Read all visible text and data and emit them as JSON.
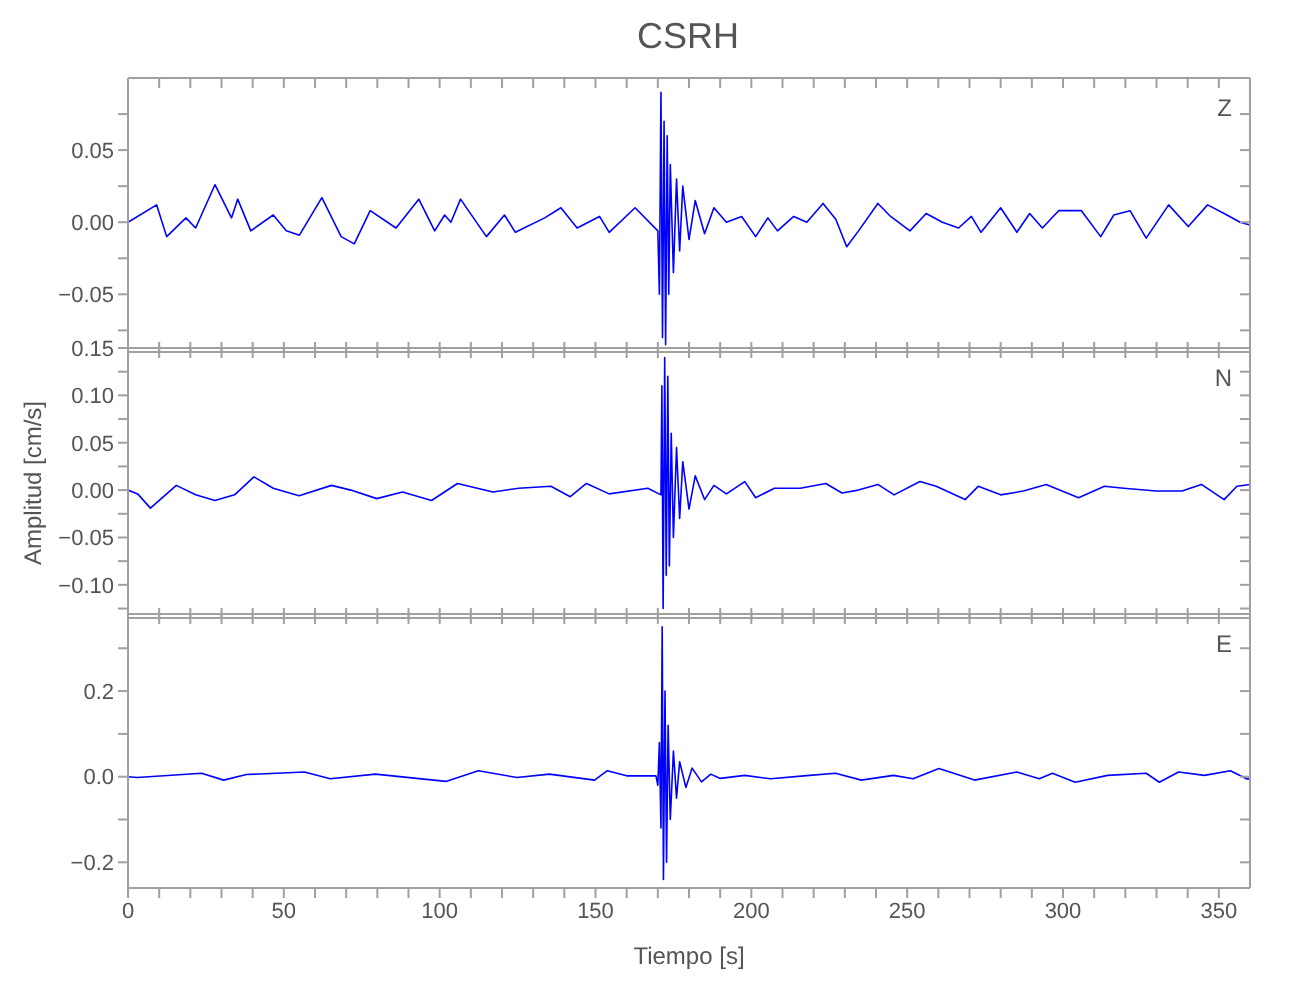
{
  "chart_data": [
    {
      "type": "line",
      "title": "CSRH",
      "annotations": [
        "Z"
      ],
      "color": "#0000ff",
      "tick_labels": "y",
      "xlim": [
        0,
        360
      ],
      "xticks": [
        0,
        {
          "value": 10,
          "label": null
        },
        {
          "value": 20,
          "label": null
        },
        {
          "value": 30,
          "label": null
        },
        {
          "value": 40,
          "label": null
        },
        50,
        {
          "value": 60,
          "label": null
        },
        {
          "value": 70,
          "label": null
        },
        {
          "value": 80,
          "label": null
        },
        {
          "value": 90,
          "label": null
        },
        100,
        {
          "value": 110,
          "label": null
        },
        {
          "value": 120,
          "label": null
        },
        {
          "value": 130,
          "label": null
        },
        {
          "value": 140,
          "label": null
        },
        150,
        {
          "value": 160,
          "label": null
        },
        {
          "value": 170,
          "label": null
        },
        {
          "value": 180,
          "label": null
        },
        {
          "value": 190,
          "label": null
        },
        200,
        {
          "value": 210,
          "label": null
        },
        {
          "value": 220,
          "label": null
        },
        {
          "value": 230,
          "label": null
        },
        {
          "value": 240,
          "label": null
        },
        250,
        {
          "value": 260,
          "label": null
        },
        {
          "value": 270,
          "label": null
        },
        {
          "value": 280,
          "label": null
        },
        {
          "value": 290,
          "label": null
        },
        300,
        {
          "value": 310,
          "label": null
        },
        {
          "value": 320,
          "label": null
        },
        {
          "value": 330,
          "label": null
        },
        {
          "value": 340,
          "label": null
        },
        350
      ],
      "ylim": [
        -0.09,
        0.1
      ],
      "yticks": [
        {
          "value": -0.075,
          "label": null
        },
        {
          "value": -0.05,
          "label": "−0.05"
        },
        {
          "value": -0.025,
          "label": null
        },
        {
          "value": 0,
          "label": "0.00"
        },
        {
          "value": 0.025,
          "label": null
        },
        0.05,
        {
          "value": 0.075,
          "label": null
        }
      ],
      "x": [
        0,
        9.2,
        12.4,
        18.6,
        21.7,
        27.9,
        33.2,
        35.2,
        39.4,
        46.6,
        50.8,
        55,
        62.2,
        68.4,
        72.6,
        77.7,
        86,
        93.3,
        98.4,
        101.6,
        103.6,
        106.7,
        115,
        120.8,
        124.3,
        133.7,
        138.9,
        144.1,
        151.3,
        154.4,
        162.7,
        170,
        170.5,
        171,
        171.5,
        172,
        172.5,
        173,
        173.5,
        174,
        175,
        176,
        177,
        178,
        180,
        182,
        185,
        188,
        192,
        196.9,
        201.4,
        205.3,
        208.4,
        213.6,
        217.8,
        223,
        227.1,
        230.6,
        234.4,
        240.6,
        244.7,
        250.9,
        256.1,
        261.3,
        266.5,
        270.6,
        273.7,
        280,
        285.2,
        289.3,
        293.4,
        298.6,
        305.9,
        312.1,
        316.3,
        321.5,
        326.7,
        333.9,
        340.2,
        346.4,
        352.6,
        356.8,
        360
      ],
      "values": [
        0,
        0.012,
        -0.01,
        0.003,
        -0.004,
        0.026,
        0.003,
        0.016,
        -0.006,
        0.005,
        -0.006,
        -0.009,
        0.017,
        -0.01,
        -0.015,
        0.008,
        -0.004,
        0.016,
        -0.006,
        0.005,
        0,
        0.016,
        -0.01,
        0.005,
        -0.007,
        0.003,
        0.01,
        -0.004,
        0.004,
        -0.007,
        0.01,
        -0.006,
        -0.05,
        0.09,
        -0.08,
        0.07,
        -0.085,
        0.06,
        -0.05,
        0.04,
        -0.035,
        0.03,
        -0.02,
        0.025,
        -0.012,
        0.015,
        -0.008,
        0.01,
        0,
        0.004,
        -0.01,
        0.003,
        -0.006,
        0.004,
        0,
        0.013,
        0.002,
        -0.017,
        -0.006,
        0.013,
        0.004,
        -0.006,
        0.006,
        0,
        -0.004,
        0.004,
        -0.007,
        0.01,
        -0.007,
        0.006,
        -0.004,
        0.008,
        0.008,
        -0.01,
        0.005,
        0.008,
        -0.011,
        0.012,
        -0.003,
        0.012,
        0.005,
        0,
        -0.002
      ]
    },
    {
      "type": "line",
      "ylabel": "Amplitud [cm/s]",
      "annotations": [
        "N"
      ],
      "color": "#0000ff",
      "tick_labels": "y",
      "xlim": [
        0,
        360
      ],
      "xticks": [
        0,
        {
          "value": 10,
          "label": null
        },
        {
          "value": 20,
          "label": null
        },
        {
          "value": 30,
          "label": null
        },
        {
          "value": 40,
          "label": null
        },
        50,
        {
          "value": 60,
          "label": null
        },
        {
          "value": 70,
          "label": null
        },
        {
          "value": 80,
          "label": null
        },
        {
          "value": 90,
          "label": null
        },
        100,
        {
          "value": 110,
          "label": null
        },
        {
          "value": 120,
          "label": null
        },
        {
          "value": 130,
          "label": null
        },
        {
          "value": 140,
          "label": null
        },
        150,
        {
          "value": 160,
          "label": null
        },
        {
          "value": 170,
          "label": null
        },
        {
          "value": 180,
          "label": null
        },
        {
          "value": 190,
          "label": null
        },
        200,
        {
          "value": 210,
          "label": null
        },
        {
          "value": 220,
          "label": null
        },
        {
          "value": 230,
          "label": null
        },
        {
          "value": 240,
          "label": null
        },
        250,
        {
          "value": 260,
          "label": null
        },
        {
          "value": 270,
          "label": null
        },
        {
          "value": 280,
          "label": null
        },
        {
          "value": 290,
          "label": null
        },
        300,
        {
          "value": 310,
          "label": null
        },
        {
          "value": 320,
          "label": null
        },
        {
          "value": 330,
          "label": null
        },
        {
          "value": 340,
          "label": null
        },
        350
      ],
      "ylim": [
        -0.135,
        0.15
      ],
      "yticks": [
        {
          "value": -0.125,
          "label": null
        },
        {
          "value": -0.1,
          "label": "−0.10"
        },
        {
          "value": -0.075,
          "label": null
        },
        {
          "value": -0.05,
          "label": "−0.05"
        },
        {
          "value": -0.025,
          "label": null
        },
        {
          "value": 0,
          "label": "0.00"
        },
        {
          "value": 0.025,
          "label": null
        },
        0.05,
        {
          "value": 0.075,
          "label": null
        },
        {
          "value": 0.1,
          "label": "0.10"
        },
        {
          "value": 0.125,
          "label": null
        },
        0.15
      ],
      "x": [
        0,
        3.1,
        7.2,
        15.5,
        21.7,
        27.9,
        34.2,
        40.4,
        46.6,
        54.9,
        65.3,
        71.5,
        79.8,
        88.1,
        97.4,
        105.7,
        117.1,
        125.4,
        135.7,
        141.9,
        147.1,
        154.4,
        166.8,
        171,
        171.3,
        171.7,
        172.2,
        172.7,
        173.2,
        173.7,
        174.3,
        175,
        176,
        177,
        178,
        180,
        182,
        185,
        188,
        192,
        197.9,
        201.4,
        207.4,
        215.7,
        223.9,
        229.1,
        234.3,
        240.6,
        245.8,
        254.1,
        259.3,
        268.6,
        272.8,
        280,
        287.3,
        294.6,
        305,
        313.3,
        319.5,
        329.9,
        338.2,
        344.4,
        351.7,
        355.8,
        360
      ],
      "values": [
        0,
        -0.004,
        -0.019,
        0.005,
        -0.005,
        -0.011,
        -0.005,
        0.014,
        0.002,
        -0.006,
        0.005,
        0,
        -0.009,
        -0.002,
        -0.011,
        0.007,
        -0.002,
        0.002,
        0.004,
        -0.007,
        0.007,
        -0.004,
        0.002,
        -0.005,
        0.11,
        -0.125,
        0.14,
        -0.09,
        0.12,
        -0.08,
        0.06,
        -0.05,
        0.045,
        -0.03,
        0.03,
        -0.02,
        0.015,
        -0.01,
        0.005,
        -0.004,
        0.009,
        -0.008,
        0.002,
        0.002,
        0.007,
        -0.003,
        0,
        0.006,
        -0.005,
        0.009,
        0.004,
        -0.01,
        0.004,
        -0.005,
        -0.001,
        0.006,
        -0.008,
        0.004,
        0.002,
        -0.001,
        -0.001,
        0.006,
        -0.01,
        0.004,
        0.006
      ]
    },
    {
      "type": "line",
      "xlabel": "Tiempo [s]",
      "annotations": [
        "E"
      ],
      "color": "#0000ff",
      "xlim": [
        0,
        360
      ],
      "xticks": [
        0,
        {
          "value": 10,
          "label": null
        },
        {
          "value": 20,
          "label": null
        },
        {
          "value": 30,
          "label": null
        },
        {
          "value": 40,
          "label": null
        },
        50,
        {
          "value": 60,
          "label": null
        },
        {
          "value": 70,
          "label": null
        },
        {
          "value": 80,
          "label": null
        },
        {
          "value": 90,
          "label": null
        },
        100,
        {
          "value": 110,
          "label": null
        },
        {
          "value": 120,
          "label": null
        },
        {
          "value": 130,
          "label": null
        },
        {
          "value": 140,
          "label": null
        },
        150,
        {
          "value": 160,
          "label": null
        },
        {
          "value": 170,
          "label": null
        },
        {
          "value": 180,
          "label": null
        },
        {
          "value": 190,
          "label": null
        },
        200,
        {
          "value": 210,
          "label": null
        },
        {
          "value": 220,
          "label": null
        },
        {
          "value": 230,
          "label": null
        },
        {
          "value": 240,
          "label": null
        },
        250,
        {
          "value": 260,
          "label": null
        },
        {
          "value": 270,
          "label": null
        },
        {
          "value": 280,
          "label": null
        },
        {
          "value": 290,
          "label": null
        },
        300,
        {
          "value": 310,
          "label": null
        },
        {
          "value": 320,
          "label": null
        },
        {
          "value": 330,
          "label": null
        },
        {
          "value": 340,
          "label": null
        },
        350
      ],
      "ylim": [
        -0.26,
        0.38
      ],
      "yticks": [
        {
          "value": -0.2,
          "label": "−0.2"
        },
        {
          "value": -0.1,
          "label": null
        },
        {
          "value": 0,
          "label": "0.0"
        },
        {
          "value": 0.1,
          "label": null
        },
        0.2,
        {
          "value": 0.3,
          "label": null
        }
      ],
      "x": [
        0,
        3,
        23.6,
        30.7,
        38,
        56.6,
        64.9,
        79.4,
        102,
        112.4,
        124.8,
        135.2,
        149.7,
        153.8,
        160,
        169.4,
        170,
        170.5,
        171,
        171.4,
        171.8,
        172.3,
        172.8,
        173.3,
        174,
        175,
        176,
        177,
        179,
        181,
        184,
        187,
        190,
        197.9,
        206.2,
        218.7,
        227,
        235.3,
        245.6,
        251.9,
        260.2,
        271.6,
        285.2,
        292.4,
        296.6,
        303.9,
        314.3,
        326.7,
        330.9,
        337.1,
        345.4,
        353.7,
        358.9,
        360
      ],
      "values": [
        0,
        -0.002,
        0.008,
        -0.008,
        0.005,
        0.011,
        -0.005,
        0.006,
        -0.011,
        0.014,
        -0.002,
        0.006,
        -0.008,
        0.014,
        0.002,
        0.002,
        -0.02,
        0.08,
        -0.12,
        0.35,
        -0.24,
        0.2,
        -0.2,
        0.12,
        -0.1,
        0.06,
        -0.05,
        0.035,
        -0.025,
        0.02,
        -0.012,
        0.006,
        -0.004,
        0.003,
        -0.005,
        0.003,
        0.008,
        -0.008,
        0.003,
        -0.005,
        0.019,
        -0.008,
        0.011,
        -0.005,
        0.008,
        -0.013,
        0.003,
        0.008,
        -0.013,
        0.011,
        0.003,
        0.014,
        -0.005,
        -0.005
      ]
    }
  ]
}
